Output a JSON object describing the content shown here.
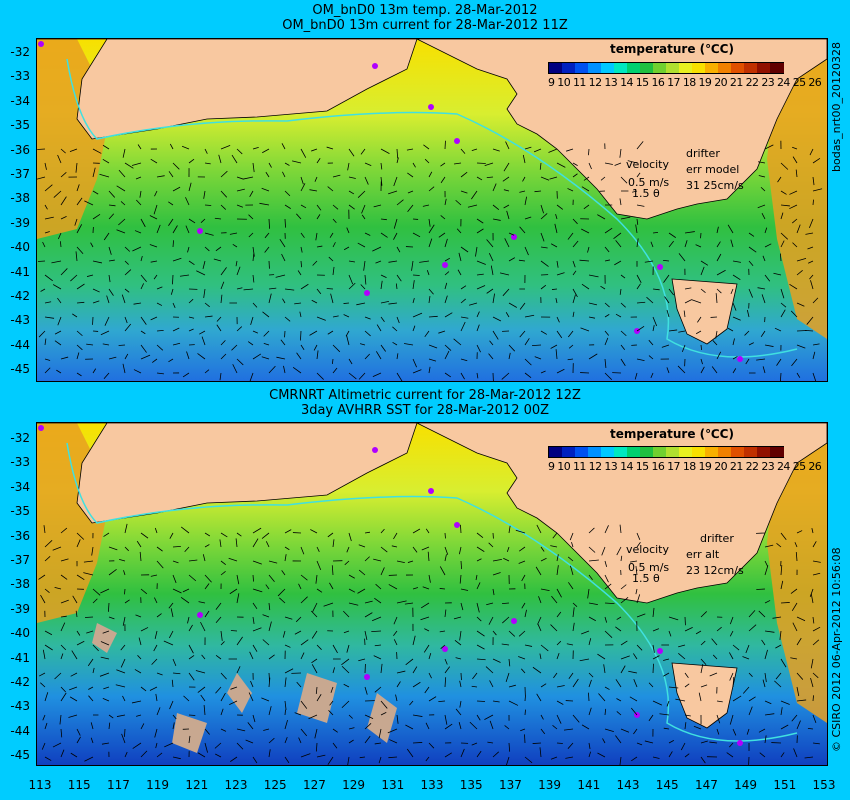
{
  "top": {
    "title_line1": "OM_bnD0 13m temp. 28-Mar-2012",
    "title_line2": "OM_bnD0 13m current for 28-Mar-2012 11Z",
    "legend_title": "temperature (℃C)",
    "legend_ticks": "9 10 11 12 13 14 15 16 17 18 19 20 21 22 23 24 25 26",
    "velocity_label": "velocity",
    "velocity_scale": "0.5 m/s",
    "velocity_sub": "1.5 θ",
    "drifter_label": "drifter",
    "err_label": "err model",
    "err_value": "31 25cm/s",
    "side_label": "bodas_nrt00_20120328"
  },
  "bottom": {
    "title_line1": "CMRNRT Altimetric current for 28-Mar-2012 12Z",
    "title_line2": "3day AVHRR SST for 28-Mar-2012 00Z",
    "legend_title": "temperature (℃C)",
    "legend_ticks": "9 10 11 12 13 14 15 16 17 18 19 20 21 22 23 24 25 26",
    "velocity_label": "velocity",
    "velocity_scale": "0.5 m/s",
    "velocity_sub": "1.5 θ",
    "drifter_label": "drifter",
    "err_label": "err alt",
    "err_value": "23 12cm/s",
    "side_label": "© CSIRO 2012  06-Apr-2012 10:56:08"
  },
  "y_ticks": [
    "-32",
    "-33",
    "-34",
    "-35",
    "-36",
    "-37",
    "-38",
    "-39",
    "-40",
    "-41",
    "-42",
    "-43",
    "-44",
    "-45"
  ],
  "x_ticks": [
    "113",
    "115",
    "117",
    "119",
    "121",
    "123",
    "125",
    "127",
    "129",
    "131",
    "133",
    "135",
    "137",
    "139",
    "141",
    "143",
    "145",
    "147",
    "149",
    "151",
    "153"
  ],
  "colors": {
    "background": "#00ccff",
    "land": "#f8c8a0",
    "warm": "#e07020",
    "mid": "#c8e830",
    "cool": "#30c040",
    "cold": "#2090e0",
    "drifter": "#b000ff"
  },
  "scale": [
    "#000080",
    "#0020c0",
    "#0050f0",
    "#0090ff",
    "#00c8ff",
    "#00e8c0",
    "#00d070",
    "#20c040",
    "#70d030",
    "#b0e030",
    "#e8f020",
    "#f8e000",
    "#f8b000",
    "#f08000",
    "#e05000",
    "#c03000",
    "#901000",
    "#600000"
  ]
}
